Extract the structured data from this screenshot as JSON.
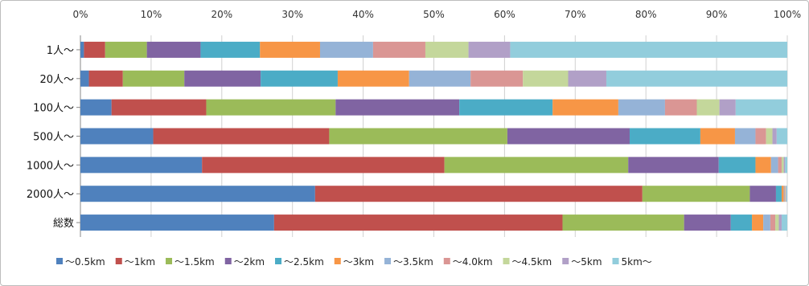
{
  "chart_data": {
    "type": "bar",
    "orientation": "horizontal",
    "stacked": true,
    "normalized": true,
    "title": "",
    "xlabel": "",
    "ylabel": "",
    "xlim": [
      0,
      100
    ],
    "x_ticks": [
      "0%",
      "10%",
      "20%",
      "30%",
      "40%",
      "50%",
      "60%",
      "70%",
      "80%",
      "90%",
      "100%"
    ],
    "x_axis_position": "top",
    "grid": true,
    "legend": "bottom",
    "categories": [
      "1人～",
      "20人～",
      "100人～",
      "500人～",
      "1000人～",
      "2000人～",
      "総数"
    ],
    "series": [
      {
        "name": "～0.5km",
        "color": "#4F81BD",
        "values": [
          0.5,
          1.2,
          4.4,
          10.3,
          17.2,
          33.2,
          27.4
        ]
      },
      {
        "name": "～1km",
        "color": "#C0504D",
        "values": [
          3.0,
          4.8,
          13.4,
          24.9,
          34.3,
          46.3,
          40.8
        ]
      },
      {
        "name": "～1.5km",
        "color": "#9BBB59",
        "values": [
          5.9,
          8.7,
          18.3,
          25.2,
          26.0,
          15.2,
          17.2
        ]
      },
      {
        "name": "～2km",
        "color": "#8064A2",
        "values": [
          7.6,
          10.8,
          17.5,
          17.3,
          12.8,
          3.7,
          6.6
        ]
      },
      {
        "name": "～2.5km",
        "color": "#4BACC6",
        "values": [
          8.4,
          10.9,
          13.2,
          10.0,
          5.2,
          0.8,
          3.0
        ]
      },
      {
        "name": "～3km",
        "color": "#F79646",
        "values": [
          8.5,
          10.1,
          9.3,
          4.9,
          2.2,
          0.3,
          1.6
        ]
      },
      {
        "name": "～3.5km",
        "color": "#95B3D7",
        "values": [
          7.5,
          8.7,
          6.6,
          2.9,
          1.0,
          0.1,
          1.0
        ]
      },
      {
        "name": "～4.0km",
        "color": "#DA9694",
        "values": [
          7.4,
          7.4,
          4.5,
          1.5,
          0.5,
          0.1,
          0.7
        ]
      },
      {
        "name": "～4.5km",
        "color": "#C4D79B",
        "values": [
          6.1,
          6.4,
          3.2,
          0.9,
          0.3,
          0.1,
          0.5
        ]
      },
      {
        "name": "～5km",
        "color": "#B1A0C7",
        "values": [
          5.9,
          5.4,
          2.3,
          0.6,
          0.2,
          0.1,
          0.4
        ]
      },
      {
        "name": "5km～",
        "color": "#92CDDC",
        "values": [
          39.2,
          25.6,
          7.3,
          1.5,
          0.3,
          0.1,
          0.8
        ]
      }
    ]
  }
}
